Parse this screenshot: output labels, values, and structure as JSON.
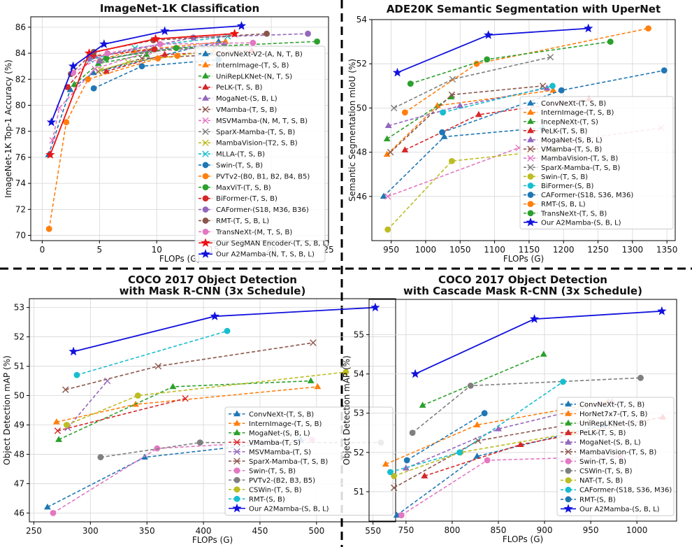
{
  "chart_data": [
    {
      "type": "line",
      "title": "ImageNet-1K Classification",
      "xlabel": "FLOPs (G)",
      "ylabel": "ImageNet-1K Top-1 Accuracy (%)",
      "xlim": [
        -1,
        25
      ],
      "ylim": [
        69.6,
        86.8
      ],
      "xticks": [
        0,
        5,
        10,
        15,
        20,
        25
      ],
      "yticks": [
        70,
        72,
        74,
        76,
        78,
        80,
        82,
        84,
        86
      ],
      "grid": true,
      "legend_position": "right",
      "series": [
        {
          "name": "ConvNeXt-V2-(A, N, T, B)",
          "color": "#1f77b4",
          "marker": "triangle",
          "dash": true,
          "x": [
            0.55,
            2.45,
            4.47,
            15.4
          ],
          "y": [
            76.2,
            81.2,
            82.5,
            84.9
          ]
        },
        {
          "name": "InternImage-(T, S, B)",
          "color": "#ff7f0e",
          "marker": "triangle",
          "dash": true,
          "x": [
            5.0,
            8.0,
            16.0
          ],
          "y": [
            83.5,
            84.2,
            84.9
          ]
        },
        {
          "name": "UniRepLKNet-(N, T, S)",
          "color": "#2ca02c",
          "marker": "triangle",
          "dash": true,
          "x": [
            2.8,
            4.9,
            9.1
          ],
          "y": [
            81.6,
            83.2,
            83.9
          ]
        },
        {
          "name": "PeLK-(T, S, B)",
          "color": "#d62728",
          "marker": "triangle",
          "dash": true,
          "x": [
            5.6,
            10.7,
            18.3
          ],
          "y": [
            82.6,
            83.9,
            84.2
          ]
        },
        {
          "name": "MogaNet-(S, B, L)",
          "color": "#9467bd",
          "marker": "triangle",
          "dash": true,
          "x": [
            5.0,
            9.9,
            15.9
          ],
          "y": [
            83.4,
            84.3,
            84.7
          ]
        },
        {
          "name": "VMamba-(T, S, B)",
          "color": "#8c564b",
          "marker": "x",
          "dash": true,
          "x": [
            4.9,
            8.7,
            15.4
          ],
          "y": [
            82.6,
            83.6,
            83.9
          ]
        },
        {
          "name": "MSVMamba-(N, M, T, S, B)",
          "color": "#e377c2",
          "marker": "x",
          "dash": true,
          "x": [
            0.9,
            1.5,
            4.6,
            9.2,
            15.1
          ],
          "y": [
            77.3,
            79.8,
            82.8,
            84.1,
            84.5
          ]
        },
        {
          "name": "SparX-Mamba-(T, S, B)",
          "color": "#7f7f7f",
          "marker": "x",
          "dash": true,
          "x": [
            5.2,
            9.3,
            15.9
          ],
          "y": [
            83.5,
            84.2,
            84.5
          ]
        },
        {
          "name": "MambaVision-(T2, S, B)",
          "color": "#bcbd22",
          "marker": "x",
          "dash": true,
          "x": [
            5.1,
            7.5,
            15.0
          ],
          "y": [
            82.7,
            83.3,
            84.2
          ]
        },
        {
          "name": "MLLA-(T, S, B)",
          "color": "#17becf",
          "marker": "x",
          "dash": true,
          "x": [
            4.2,
            8.1,
            16.2
          ],
          "y": [
            83.5,
            84.4,
            85.3
          ]
        },
        {
          "name": "Swin-(T, S, B)",
          "color": "#1f77b4",
          "marker": "circle",
          "dash": true,
          "x": [
            4.5,
            8.7,
            15.4
          ],
          "y": [
            81.3,
            83.0,
            83.5
          ]
        },
        {
          "name": "PVTv2-(B0, B1, B2, B4, B5)",
          "color": "#ff7f0e",
          "marker": "circle",
          "dash": true,
          "x": [
            0.6,
            2.1,
            4.0,
            10.1,
            11.8
          ],
          "y": [
            70.5,
            78.7,
            82.0,
            83.6,
            83.8
          ]
        },
        {
          "name": "MaxViT-(T, S, B)",
          "color": "#2ca02c",
          "marker": "circle",
          "dash": true,
          "x": [
            5.6,
            11.7,
            24.0
          ],
          "y": [
            83.6,
            84.4,
            84.9
          ]
        },
        {
          "name": "BiFormer-(T, S, B)",
          "color": "#d62728",
          "marker": "circle",
          "dash": true,
          "x": [
            2.2,
            4.5,
            9.8
          ],
          "y": [
            81.4,
            83.8,
            84.3
          ]
        },
        {
          "name": "CAFormer-(S18, M36, B36)",
          "color": "#9467bd",
          "marker": "circle",
          "dash": true,
          "x": [
            4.1,
            13.2,
            23.2
          ],
          "y": [
            83.6,
            85.2,
            85.5
          ]
        },
        {
          "name": "RMT-(T, S, B, L)",
          "color": "#8c564b",
          "marker": "circle",
          "dash": true,
          "x": [
            2.5,
            4.5,
            9.7,
            19.6
          ],
          "y": [
            82.4,
            84.1,
            85.0,
            85.5
          ]
        },
        {
          "name": "TransNeXt-(M, T, S, B)",
          "color": "#e377c2",
          "marker": "circle",
          "dash": true,
          "x": [
            2.7,
            5.7,
            10.3,
            18.4
          ],
          "y": [
            82.5,
            84.0,
            84.7,
            84.8
          ]
        },
        {
          "name": "Our SegMAN Encoder-(T, S, B, L)",
          "color": "#ee1111",
          "marker": "star",
          "dash": false,
          "x": [
            0.7,
            4.1,
            9.9,
            16.8
          ],
          "y": [
            76.2,
            84.0,
            85.1,
            85.5
          ]
        },
        {
          "name": "Our A2Mamba-(N, T, S, B, L)",
          "color": "#1111dd",
          "marker": "star",
          "dash": false,
          "x": [
            0.8,
            2.7,
            5.4,
            10.7,
            17.4
          ],
          "y": [
            78.7,
            83.0,
            84.7,
            85.7,
            86.1
          ]
        }
      ]
    },
    {
      "type": "line",
      "title": "ADE20K Semantic Segmentation with UperNet",
      "xlabel": "FLOPs (G)",
      "ylabel": "Semantic Segmentation mIoU (%)",
      "xlim": [
        922,
        1362
      ],
      "ylim": [
        44.0,
        54.0
      ],
      "xticks": [
        950,
        1000,
        1050,
        1100,
        1150,
        1200,
        1250,
        1300,
        1350
      ],
      "yticks": [
        46,
        48,
        50,
        52,
        54
      ],
      "grid": true,
      "legend_position": "lower right",
      "series": [
        {
          "name": "ConvNeXt-(T, S, B)",
          "color": "#1f77b4",
          "marker": "triangle",
          "dash": true,
          "x": [
            939,
            1027,
            1170
          ],
          "y": [
            46.0,
            48.7,
            49.1
          ]
        },
        {
          "name": "InternImage-(T, S, B)",
          "color": "#ff7f0e",
          "marker": "triangle",
          "dash": true,
          "x": [
            944,
            1017,
            1185
          ],
          "y": [
            47.9,
            50.1,
            50.8
          ]
        },
        {
          "name": "IncepNeXt-(T, S)",
          "color": "#2ca02c",
          "marker": "triangle",
          "dash": true,
          "x": [
            944,
            1037
          ],
          "y": [
            48.6,
            50.5
          ]
        },
        {
          "name": "PeLK-(T, S, B)",
          "color": "#d62728",
          "marker": "triangle",
          "dash": true,
          "x": [
            970,
            1077,
            1237
          ],
          "y": [
            48.1,
            49.7,
            50.4
          ]
        },
        {
          "name": "MogaNet-(S, B, L)",
          "color": "#9467bd",
          "marker": "triangle",
          "dash": true,
          "x": [
            946,
            1050,
            1176
          ],
          "y": [
            49.2,
            50.1,
            50.9
          ]
        },
        {
          "name": "VMamba-(T, S, B)",
          "color": "#8c564b",
          "marker": "x",
          "dash": true,
          "x": [
            949,
            1038,
            1170
          ],
          "y": [
            48.0,
            50.6,
            51.0
          ]
        },
        {
          "name": "MambaVision-(T, S, B)",
          "color": "#e377c2",
          "marker": "x",
          "dash": true,
          "x": [
            945,
            1135,
            1342
          ],
          "y": [
            46.0,
            48.2,
            49.1
          ]
        },
        {
          "name": "SparX-Mamba-(T, S, B)",
          "color": "#7f7f7f",
          "marker": "x",
          "dash": true,
          "x": [
            954,
            1039,
            1181
          ],
          "y": [
            50.0,
            51.3,
            52.3
          ]
        },
        {
          "name": "Swin-(T, S, B)",
          "color": "#bcbd22",
          "marker": "circle",
          "dash": true,
          "x": [
            945,
            1038,
            1188
          ],
          "y": [
            44.5,
            47.6,
            48.1
          ]
        },
        {
          "name": "BiFormer-(S, B)",
          "color": "#17becf",
          "marker": "circle",
          "dash": true,
          "x": [
            1025,
            1184
          ],
          "y": [
            49.8,
            51.0
          ]
        },
        {
          "name": "CAFormer-(S18, S36, M36)",
          "color": "#1f77b4",
          "marker": "circle",
          "dash": true,
          "x": [
            1024,
            1197,
            1346
          ],
          "y": [
            48.9,
            50.8,
            51.7
          ]
        },
        {
          "name": "RMT-(S, B, L)",
          "color": "#ff7f0e",
          "marker": "circle",
          "dash": true,
          "x": [
            970,
            1074,
            1323
          ],
          "y": [
            49.8,
            52.0,
            53.6
          ]
        },
        {
          "name": "TransNeXt-(T, S, B)",
          "color": "#2ca02c",
          "marker": "circle",
          "dash": true,
          "x": [
            978,
            1089,
            1268
          ],
          "y": [
            51.1,
            52.2,
            53.0
          ]
        },
        {
          "name": "Our A2Mamba-(S, B, L)",
          "color": "#1111dd",
          "marker": "star",
          "dash": false,
          "x": [
            959,
            1091,
            1236
          ],
          "y": [
            51.6,
            53.3,
            53.6
          ]
        }
      ]
    },
    {
      "type": "line",
      "title": "COCO 2017 Object Detection",
      "subtitle": "with Mask R-CNN  (3x Schedule)",
      "xlabel": "FLOPs (G)",
      "ylabel": "Object Detection mAP (%)",
      "xlim": [
        246,
        570
      ],
      "ylim": [
        45.7,
        53.3
      ],
      "xticks": [
        250,
        300,
        350,
        400,
        450,
        500,
        550
      ],
      "yticks": [
        46,
        47,
        48,
        49,
        50,
        51,
        52,
        53
      ],
      "grid": true,
      "legend_position": "lower right",
      "series": [
        {
          "name": "ConvNeXt-(T, S, B)",
          "color": "#1f77b4",
          "marker": "triangle",
          "dash": true,
          "x": [
            262,
            348,
            486
          ],
          "y": [
            46.2,
            47.9,
            48.5
          ]
        },
        {
          "name": "InternImage-(T, S, B)",
          "color": "#ff7f0e",
          "marker": "triangle",
          "dash": true,
          "x": [
            270,
            340,
            501
          ],
          "y": [
            49.1,
            49.7,
            50.3
          ]
        },
        {
          "name": "MogaNet-(S, B, L)",
          "color": "#2ca02c",
          "marker": "triangle",
          "dash": true,
          "x": [
            272,
            373,
            495
          ],
          "y": [
            48.5,
            50.3,
            50.5
          ]
        },
        {
          "name": "VMamba-(T, S)",
          "color": "#d62728",
          "marker": "x",
          "dash": true,
          "x": [
            271,
            384
          ],
          "y": [
            48.8,
            49.9
          ]
        },
        {
          "name": "MSVMamba-(T, S)",
          "color": "#9467bd",
          "marker": "x",
          "dash": true,
          "x": [
            280,
            315
          ],
          "y": [
            48.9,
            50.5
          ]
        },
        {
          "name": "SparX-Mamba-(T, S, B)",
          "color": "#8c564b",
          "marker": "x",
          "dash": true,
          "x": [
            278,
            360,
            497
          ],
          "y": [
            50.2,
            51.0,
            51.8
          ]
        },
        {
          "name": "Swin-(T, S, B)",
          "color": "#e377c2",
          "marker": "circle",
          "dash": true,
          "x": [
            267,
            359,
            496
          ],
          "y": [
            46.0,
            48.2,
            48.5
          ]
        },
        {
          "name": "PVTv2-(B2, B3, B5)",
          "color": "#7f7f7f",
          "marker": "circle",
          "dash": true,
          "x": [
            309,
            397,
            557
          ],
          "y": [
            47.9,
            48.4,
            48.4
          ]
        },
        {
          "name": "CSWin-(T, S, B)",
          "color": "#bcbd22",
          "marker": "circle",
          "dash": true,
          "x": [
            279,
            342,
            526
          ],
          "y": [
            49.0,
            50.0,
            50.8
          ]
        },
        {
          "name": "RMT-(S, B)",
          "color": "#17becf",
          "marker": "circle",
          "dash": true,
          "x": [
            288,
            421
          ],
          "y": [
            50.7,
            52.2
          ]
        },
        {
          "name": "Our A2Mamba-(S, B, L)",
          "color": "#1111dd",
          "marker": "star",
          "dash": false,
          "x": [
            285,
            410,
            552
          ],
          "y": [
            51.5,
            52.7,
            53.0
          ]
        }
      ]
    },
    {
      "type": "line",
      "title": "COCO 2017 Object Detection",
      "subtitle": "with Cascade Mask R-CNN (3x Schedule)",
      "xlabel": "FLOPs (G)",
      "ylabel": "Object Detection mAP (%)",
      "xlim": [
        710,
        1043
      ],
      "ylim": [
        50.25,
        55.9
      ],
      "xticks": [
        750,
        800,
        850,
        900,
        950,
        1000
      ],
      "yticks": [
        51,
        52,
        53,
        54,
        55
      ],
      "grid": true,
      "legend_position": "lower right",
      "series": [
        {
          "name": "ConvNeXt-(T, S, B)",
          "color": "#1f77b4",
          "marker": "triangle",
          "dash": true,
          "x": [
            740,
            827,
            964
          ],
          "y": [
            50.4,
            51.9,
            52.7
          ]
        },
        {
          "name": "HorNet7x7-(T, S, B)",
          "color": "#ff7f0e",
          "marker": "triangle",
          "dash": true,
          "x": [
            728,
            827,
            969
          ],
          "y": [
            51.7,
            52.7,
            53.3
          ]
        },
        {
          "name": "UniRepLKNet-(S, B)",
          "color": "#2ca02c",
          "marker": "triangle",
          "dash": true,
          "x": [
            768,
            899
          ],
          "y": [
            53.2,
            54.5
          ]
        },
        {
          "name": "PeLK-(T, S, B)",
          "color": "#d62728",
          "marker": "triangle",
          "dash": true,
          "x": [
            770,
            874,
            1028
          ],
          "y": [
            51.4,
            52.2,
            52.9
          ]
        },
        {
          "name": "MogaNet-(S, B, L)",
          "color": "#9467bd",
          "marker": "triangle",
          "dash": true,
          "x": [
            750,
            850,
            973
          ],
          "y": [
            51.6,
            52.6,
            53.3
          ]
        },
        {
          "name": "MambaVision-(T, S, B)",
          "color": "#8c564b",
          "marker": "x",
          "dash": true,
          "x": [
            737,
            828,
            949
          ],
          "y": [
            51.1,
            52.3,
            52.8
          ]
        },
        {
          "name": "Swin-(T, S, B)",
          "color": "#e377c2",
          "marker": "circle",
          "dash": true,
          "x": [
            745,
            838,
            982
          ],
          "y": [
            50.4,
            51.8,
            51.9
          ]
        },
        {
          "name": "CSWin-(T, S, B)",
          "color": "#7f7f7f",
          "marker": "circle",
          "dash": true,
          "x": [
            757,
            820,
            1004
          ],
          "y": [
            52.5,
            53.7,
            53.9
          ]
        },
        {
          "name": "NAT-(T, S, B)",
          "color": "#bcbd22",
          "marker": "circle",
          "dash": true,
          "x": [
            737,
            809,
            931
          ],
          "y": [
            51.4,
            52.0,
            52.5
          ]
        },
        {
          "name": "CAFormer-(S18, S36, M36)",
          "color": "#17becf",
          "marker": "circle",
          "dash": true,
          "x": [
            733,
            808,
            920
          ],
          "y": [
            51.5,
            52.0,
            53.8
          ]
        },
        {
          "name": "RMT-(S, B)",
          "color": "#1f77b4",
          "marker": "circle",
          "dash": true,
          "x": [
            751,
            835
          ],
          "y": [
            51.8,
            53.0
          ]
        },
        {
          "name": "Our A2Mamba-(S, B, L)",
          "color": "#1111dd",
          "marker": "star",
          "dash": false,
          "x": [
            760,
            889,
            1027
          ],
          "y": [
            54.0,
            55.4,
            55.6
          ]
        }
      ]
    }
  ]
}
